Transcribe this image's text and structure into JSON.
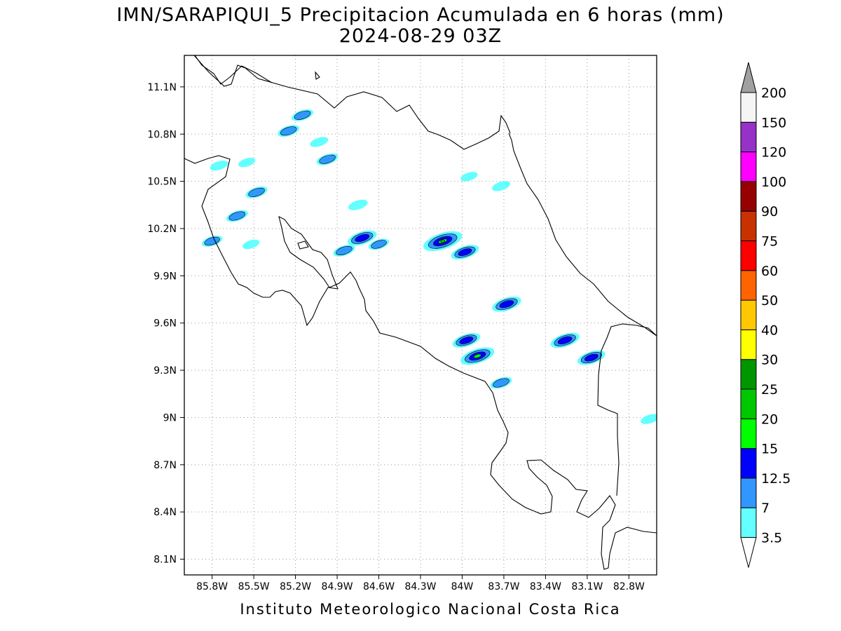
{
  "header": {
    "title_line1": "IMN/SARAPIQUI_5 Precipitacion Acumulada en 6 horas (mm)",
    "title_line2": "2024-08-29 03Z"
  },
  "footer": {
    "credit": "Instituto Meteorologico Nacional Costa Rica"
  },
  "map": {
    "lon_range": [
      -86.0,
      -82.6
    ],
    "lat_range": [
      8.0,
      11.3
    ],
    "lon_ticks": [
      -85.8,
      -85.5,
      -85.2,
      -84.9,
      -84.6,
      -84.3,
      -84.0,
      -83.7,
      -83.4,
      -83.1,
      -82.8
    ],
    "lon_tick_labels": [
      "85.8W",
      "85.5W",
      "85.2W",
      "84.9W",
      "84.6W",
      "84.3W",
      "84W",
      "83.7W",
      "83.4W",
      "83.1W",
      "82.8W"
    ],
    "lat_ticks": [
      11.1,
      10.8,
      10.5,
      10.2,
      9.9,
      9.6,
      9.3,
      9.0,
      8.7,
      8.4,
      8.1
    ],
    "lat_tick_labels": [
      "11.1N",
      "10.8N",
      "10.5N",
      "10.2N",
      "9.9N",
      "9.6N",
      "9.3N",
      "9N",
      "8.7N",
      "8.4N",
      "8.1N"
    ],
    "grid": true
  },
  "colorbar": {
    "labels": [
      "3.5",
      "7",
      "12.5",
      "15",
      "20",
      "25",
      "30",
      "40",
      "50",
      "60",
      "75",
      "90",
      "100",
      "120",
      "150",
      "200"
    ],
    "colors": [
      "#64ffff",
      "#3296ff",
      "#0000ff",
      "#00ff00",
      "#00c800",
      "#009600",
      "#ffff00",
      "#ffc800",
      "#ff6400",
      "#ff0000",
      "#c83200",
      "#960000",
      "#ff00ff",
      "#9632c8",
      "#f5f5f5",
      "#a0a0a0"
    ]
  },
  "chart_data": {
    "type": "heatmap",
    "title": "IMN/SARAPIQUI_5 Precipitacion Acumulada en 6 horas (mm)",
    "subtitle": "2024-08-29 03Z",
    "xlabel": "",
    "ylabel": "",
    "xlim": [
      -86.0,
      -82.6
    ],
    "ylim": [
      8.0,
      11.3
    ],
    "levels": [
      3.5,
      7,
      12.5,
      15,
      20,
      25,
      30,
      40,
      50,
      60,
      75,
      90,
      100,
      120,
      150,
      200
    ],
    "cells": [
      {
        "lon": -85.15,
        "lat": 10.92,
        "value": 8
      },
      {
        "lon": -85.25,
        "lat": 10.82,
        "value": 8
      },
      {
        "lon": -85.03,
        "lat": 10.75,
        "value": 5
      },
      {
        "lon": -84.97,
        "lat": 10.64,
        "value": 8
      },
      {
        "lon": -85.75,
        "lat": 10.6,
        "value": 5
      },
      {
        "lon": -85.55,
        "lat": 10.62,
        "value": 4
      },
      {
        "lon": -85.48,
        "lat": 10.43,
        "value": 8
      },
      {
        "lon": -85.62,
        "lat": 10.28,
        "value": 8
      },
      {
        "lon": -85.8,
        "lat": 10.12,
        "value": 7
      },
      {
        "lon": -85.52,
        "lat": 10.1,
        "value": 4
      },
      {
        "lon": -84.72,
        "lat": 10.14,
        "value": 14
      },
      {
        "lon": -84.85,
        "lat": 10.06,
        "value": 8
      },
      {
        "lon": -84.6,
        "lat": 10.1,
        "value": 7
      },
      {
        "lon": -84.75,
        "lat": 10.35,
        "value": 6
      },
      {
        "lon": -84.14,
        "lat": 10.12,
        "value": 22
      },
      {
        "lon": -83.98,
        "lat": 10.05,
        "value": 13
      },
      {
        "lon": -83.68,
        "lat": 9.72,
        "value": 14
      },
      {
        "lon": -83.97,
        "lat": 9.49,
        "value": 13
      },
      {
        "lon": -83.89,
        "lat": 9.39,
        "value": 18
      },
      {
        "lon": -83.72,
        "lat": 9.22,
        "value": 8
      },
      {
        "lon": -83.26,
        "lat": 9.49,
        "value": 14
      },
      {
        "lon": -83.07,
        "lat": 9.38,
        "value": 13
      },
      {
        "lon": -83.95,
        "lat": 10.53,
        "value": 4
      },
      {
        "lon": -83.72,
        "lat": 10.47,
        "value": 5
      },
      {
        "lon": -82.65,
        "lat": 8.99,
        "value": 5
      }
    ]
  }
}
